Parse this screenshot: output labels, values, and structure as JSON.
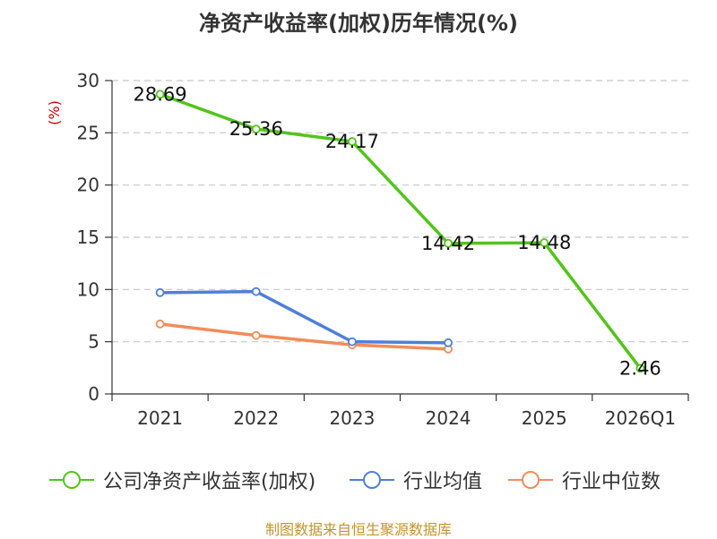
{
  "title": "净资产收益率(加权)历年情况(%)",
  "source": "制图数据来自恒生聚源数据库",
  "chart_data": {
    "type": "line",
    "title": "净资产收益率(加权)历年情况(%)",
    "ylabel": "(%)",
    "xlabel": "",
    "categories": [
      "2021",
      "2022",
      "2023",
      "2024",
      "2025",
      "2026Q1"
    ],
    "ylim": [
      0,
      30
    ],
    "yticks": [
      0,
      5,
      10,
      15,
      20,
      25,
      30
    ],
    "grid": "horizontal-dashed",
    "legend_position": "bottom",
    "series": [
      {
        "name": "公司净资产收益率(加权)",
        "color": "#52c41a",
        "values": [
          28.69,
          25.36,
          24.17,
          14.42,
          14.48,
          2.46
        ],
        "labels": [
          "28.69",
          "25.36",
          "24.17",
          "14.42",
          "14.48",
          "2.46"
        ]
      },
      {
        "name": "行业均值",
        "color": "#4e7fd9",
        "values": [
          9.7,
          9.8,
          5.0,
          4.9,
          null,
          null
        ]
      },
      {
        "name": "行业中位数",
        "color": "#f28c5a",
        "values": [
          6.7,
          5.6,
          4.7,
          4.3,
          null,
          null
        ]
      }
    ]
  }
}
